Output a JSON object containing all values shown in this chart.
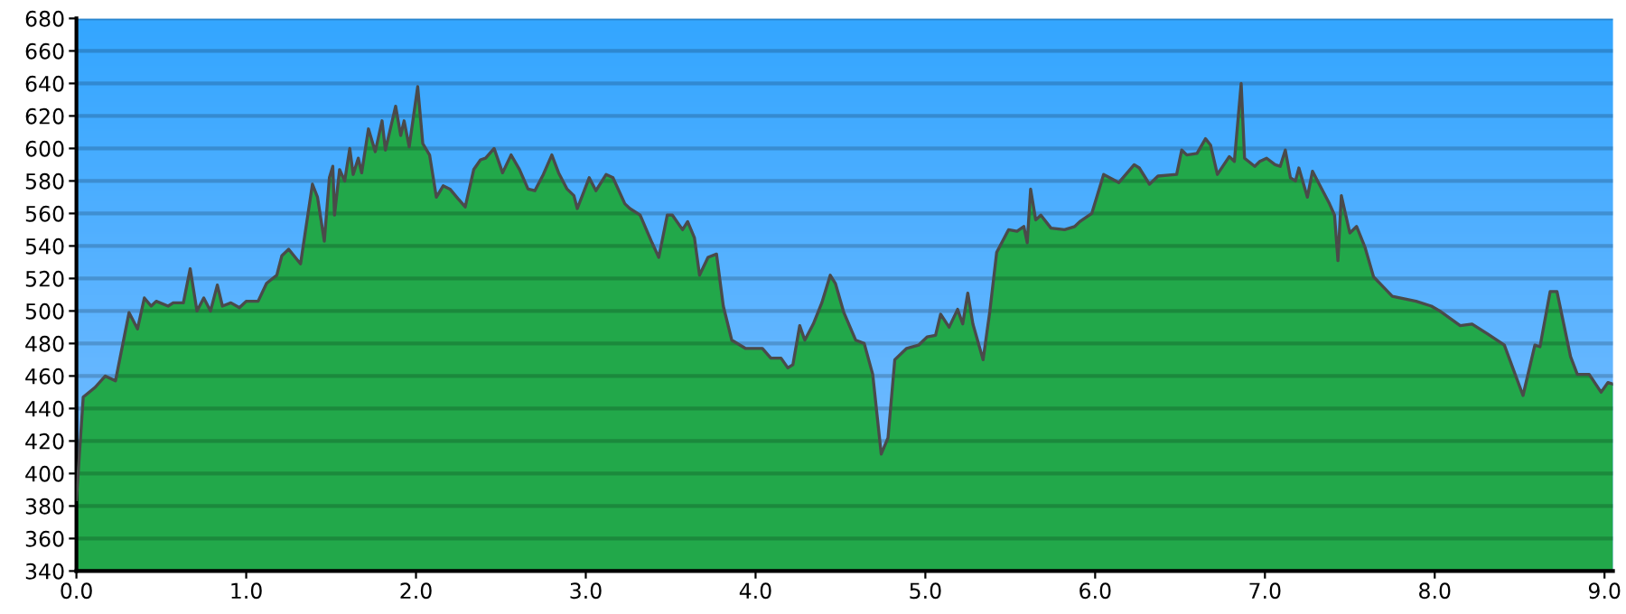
{
  "chart_data": {
    "type": "area",
    "series": [
      {
        "color": "#22a84a",
        "x": [
          0.0,
          0.04,
          0.11,
          0.17,
          0.23,
          0.31,
          0.36,
          0.4,
          0.44,
          0.47,
          0.54,
          0.57,
          0.63,
          0.67,
          0.71,
          0.75,
          0.79,
          0.83,
          0.86,
          0.91,
          0.96,
          1.0,
          1.07,
          1.12,
          1.18,
          1.21,
          1.25,
          1.32,
          1.39,
          1.42,
          1.46,
          1.49,
          1.51,
          1.52,
          1.55,
          1.58,
          1.61,
          1.63,
          1.66,
          1.68,
          1.72,
          1.76,
          1.8,
          1.82,
          1.88,
          1.91,
          1.93,
          1.96,
          2.01,
          2.04,
          2.08,
          2.12,
          2.16,
          2.2,
          2.24,
          2.29,
          2.34,
          2.38,
          2.41,
          2.46,
          2.51,
          2.56,
          2.61,
          2.66,
          2.7,
          2.75,
          2.8,
          2.84,
          2.89,
          2.93,
          2.95,
          3.02,
          3.06,
          3.12,
          3.16,
          3.23,
          3.26,
          3.32,
          3.39,
          3.43,
          3.48,
          3.51,
          3.57,
          3.6,
          3.64,
          3.67,
          3.72,
          3.77,
          3.81,
          3.86,
          3.94,
          4.04,
          4.09,
          4.15,
          4.19,
          4.22,
          4.26,
          4.29,
          4.34,
          4.39,
          4.44,
          4.47,
          4.52,
          4.59,
          4.64,
          4.69,
          4.74,
          4.78,
          4.82,
          4.89,
          4.96,
          5.01,
          5.06,
          5.09,
          5.14,
          5.19,
          5.22,
          5.25,
          5.28,
          5.34,
          5.38,
          5.42,
          5.49,
          5.54,
          5.58,
          5.6,
          5.62,
          5.65,
          5.68,
          5.74,
          5.82,
          5.88,
          5.91,
          5.98,
          6.05,
          6.14,
          6.23,
          6.26,
          6.32,
          6.37,
          6.48,
          6.51,
          6.54,
          6.6,
          6.65,
          6.68,
          6.72,
          6.79,
          6.82,
          6.86,
          6.88,
          6.94,
          6.97,
          7.01,
          7.06,
          7.09,
          7.12,
          7.15,
          7.18,
          7.2,
          7.25,
          7.28,
          7.32,
          7.38,
          7.41,
          7.43,
          7.45,
          7.5,
          7.54,
          7.59,
          7.64,
          7.75,
          7.89,
          7.98,
          8.03,
          8.15,
          8.22,
          8.31,
          8.41,
          8.52,
          8.59,
          8.62,
          8.68,
          8.72,
          8.8,
          8.84,
          8.91,
          8.98,
          9.02,
          9.05
        ],
        "values": [
          384,
          447,
          453,
          460,
          457,
          499,
          489,
          508,
          503,
          506,
          503,
          505,
          505,
          526,
          500,
          508,
          500,
          516,
          503,
          505,
          502,
          506,
          506,
          517,
          522,
          534,
          538,
          529,
          578,
          570,
          543,
          582,
          589,
          559,
          587,
          580,
          600,
          584,
          594,
          585,
          612,
          598,
          617,
          599,
          626,
          608,
          617,
          601,
          638,
          603,
          596,
          570,
          577,
          575,
          570,
          564,
          587,
          593,
          594,
          600,
          585,
          596,
          587,
          575,
          574,
          584,
          596,
          585,
          575,
          571,
          563,
          582,
          574,
          584,
          582,
          566,
          563,
          559,
          542,
          533,
          559,
          559,
          550,
          555,
          545,
          522,
          533,
          535,
          503,
          482,
          477,
          477,
          471,
          471,
          465,
          467,
          491,
          482,
          492,
          505,
          522,
          517,
          499,
          482,
          480,
          461,
          412,
          422,
          470,
          477,
          479,
          484,
          485,
          498,
          490,
          501,
          492,
          511,
          492,
          470,
          500,
          536,
          550,
          549,
          552,
          542,
          575,
          556,
          559,
          551,
          550,
          552,
          555,
          560,
          584,
          579,
          590,
          588,
          578,
          583,
          584,
          599,
          596,
          597,
          606,
          602,
          584,
          595,
          592,
          640,
          594,
          589,
          592,
          594,
          590,
          589,
          599,
          582,
          580,
          588,
          570,
          586,
          578,
          566,
          559,
          531,
          571,
          548,
          552,
          539,
          521,
          509,
          506,
          503,
          500,
          491,
          492,
          486,
          479,
          448,
          479,
          478,
          512,
          512,
          472,
          461,
          461,
          450,
          456,
          455
        ]
      }
    ],
    "xlim": [
      0,
      9.05
    ],
    "ylim": [
      340,
      680
    ],
    "xticks": [
      {
        "value": 0,
        "label": "0.0"
      },
      {
        "value": 1,
        "label": "1.0"
      },
      {
        "value": 2,
        "label": "2.0"
      },
      {
        "value": 3,
        "label": "3.0"
      },
      {
        "value": 4,
        "label": "4.0"
      },
      {
        "value": 5,
        "label": "5.0"
      },
      {
        "value": 6,
        "label": "6.0"
      },
      {
        "value": 7,
        "label": "7.0"
      },
      {
        "value": 8,
        "label": "8.0"
      },
      {
        "value": 9,
        "label": "9.0"
      }
    ],
    "yticks": [
      340,
      360,
      380,
      400,
      420,
      440,
      460,
      480,
      500,
      520,
      540,
      560,
      580,
      600,
      620,
      640,
      660,
      680
    ],
    "grid": "y"
  }
}
